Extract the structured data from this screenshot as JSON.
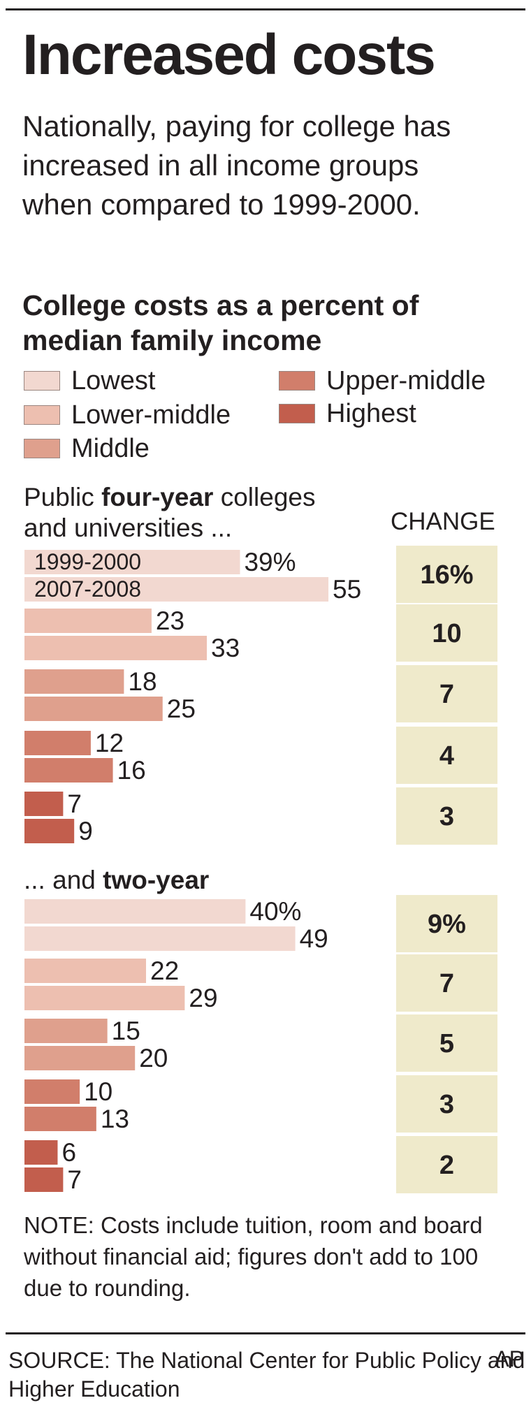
{
  "title": "Increased costs",
  "intro": "Nationally, paying for college has increased in all income groups when compared to 1999-2000.",
  "subtitle": "College costs as a percent of median family income",
  "legend": [
    {
      "name": "Lowest",
      "color": "#f2d8d0"
    },
    {
      "name": "Lower-middle",
      "color": "#edbfb0"
    },
    {
      "name": "Middle",
      "color": "#dfa08d"
    },
    {
      "name": "Upper-middle",
      "color": "#d17e6b"
    },
    {
      "name": "Highest",
      "color": "#c25e4d"
    }
  ],
  "sections": {
    "four_year": {
      "pre": "Public ",
      "bold": "four-year",
      "post": " colleges",
      "line2": "and universities ..."
    },
    "two_year": {
      "pre": "... and ",
      "bold": "two-year"
    }
  },
  "change_header": "CHANGE",
  "change_panel_color": "#efeacb",
  "note": "NOTE: Costs include tuition, room and board without financial aid; figures don't add to 100 due to rounding.",
  "source": "SOURCE: The National Center for Public Policy and Higher Education",
  "credit": "AP",
  "chart_data": [
    {
      "type": "bar",
      "title": "Public four-year colleges and universities ...",
      "categories": [
        "Lowest",
        "Lower-middle",
        "Middle",
        "Upper-middle",
        "Highest"
      ],
      "series": [
        {
          "name": "1999-2000",
          "values": [
            39,
            23,
            18,
            12,
            7
          ],
          "labels": [
            "39%",
            "23",
            "18",
            "12",
            "7"
          ]
        },
        {
          "name": "2007-2008",
          "values": [
            55,
            33,
            25,
            16,
            9
          ],
          "labels": [
            "55",
            "33",
            "25",
            "16",
            "9"
          ]
        }
      ],
      "change": [
        "16%",
        "10",
        "7",
        "4",
        "3"
      ]
    },
    {
      "type": "bar",
      "title": "... and two-year",
      "categories": [
        "Lowest",
        "Lower-middle",
        "Middle",
        "Upper-middle",
        "Highest"
      ],
      "series": [
        {
          "values": [
            40,
            22,
            15,
            10,
            6
          ],
          "labels": [
            "40%",
            "22",
            "15",
            "10",
            "6"
          ]
        },
        {
          "values": [
            49,
            29,
            20,
            13,
            7
          ],
          "labels": [
            "49",
            "29",
            "20",
            "13",
            "7"
          ]
        }
      ],
      "change": [
        "9%",
        "7",
        "5",
        "3",
        "2"
      ]
    }
  ]
}
